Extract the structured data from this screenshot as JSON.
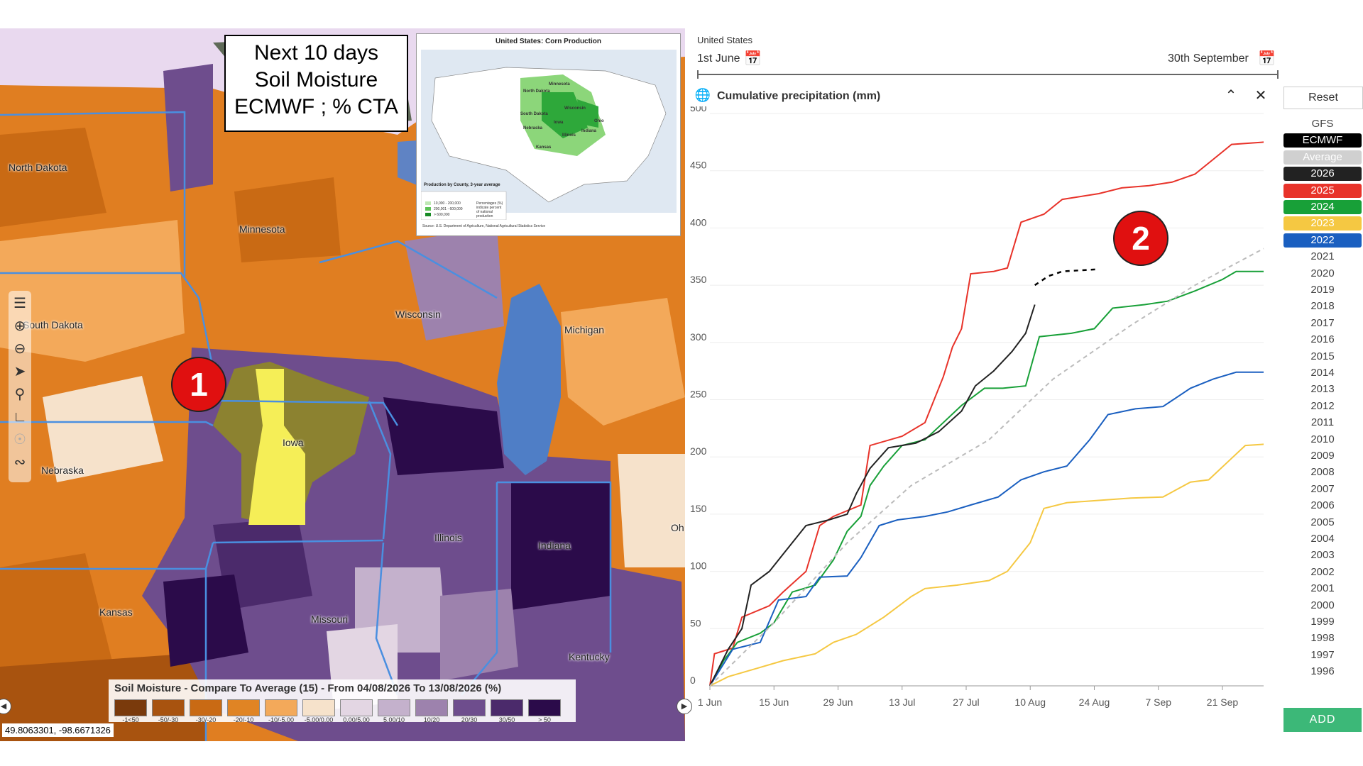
{
  "map": {
    "overlay": {
      "line1": "Next 10 days",
      "line2": "Soil Moisture",
      "line3": "ECMWF ; % CTA"
    },
    "inset": {
      "title": "United States: Corn Production",
      "states": [
        "North Dakota",
        "Minnesota",
        "South Dakota",
        "Wisconsin",
        "Nebraska",
        "Iowa",
        "Illinois",
        "Kansas",
        "Indiana",
        "Ohio"
      ],
      "legend_title": "Production by County, 3-year average",
      "legend_items": [
        "10,000 - 200,000",
        "200,001 - 600,000",
        "> 600,000"
      ],
      "legend_note": "Percentages (%) indicate percent of national production",
      "source": "Source: U.S. Department of Agriculture, National Agricultural Statistics Service"
    },
    "state_labels": [
      {
        "name": "North Dakota"
      },
      {
        "name": "Minnesota"
      },
      {
        "name": "South Dakota"
      },
      {
        "name": "Wisconsin"
      },
      {
        "name": "Michigan"
      },
      {
        "name": "Iowa"
      },
      {
        "name": "Nebraska"
      },
      {
        "name": "Illinois"
      },
      {
        "name": "Indiana"
      },
      {
        "name": "Kansas"
      },
      {
        "name": "Missouri"
      },
      {
        "name": "Kentucky"
      },
      {
        "name": "Oh"
      }
    ],
    "badge_1": "1",
    "legend": {
      "title": "Soil Moisture - Compare To Average (15) - From 04/08/2026 To 13/08/2026 (%)",
      "items": [
        {
          "label": "-1<50",
          "color": "#7a3a0c"
        },
        {
          "label": "-50/-30",
          "color": "#a8530f"
        },
        {
          "label": "-30/-20",
          "color": "#c96a14"
        },
        {
          "label": "-20/-10",
          "color": "#e08424"
        },
        {
          "label": "-10/-5.00",
          "color": "#f3a95a"
        },
        {
          "label": "-5.00/0.00",
          "color": "#f6e2cb"
        },
        {
          "label": "0.00/5.00",
          "color": "#e3d6e3"
        },
        {
          "label": "5.00/10",
          "color": "#c4b1cc"
        },
        {
          "label": "10/20",
          "color": "#9d82ad"
        },
        {
          "label": "20/30",
          "color": "#6e4d8d"
        },
        {
          "label": "30/50",
          "color": "#4b2a6b"
        },
        {
          "label": "> 50",
          "color": "#2b0b4a"
        }
      ]
    },
    "coords": "49.8063301, -98.6671326"
  },
  "chart_panel": {
    "region": "United States",
    "start_date": "1st June",
    "end_date": "30th September",
    "chart_title": "Cumulative precipitation (mm)",
    "reset_label": "Reset",
    "add_label": "ADD",
    "badge_2": "2",
    "models": [
      {
        "label": "GFS",
        "bg": "#ffffff",
        "fg": "#444444"
      },
      {
        "label": "ECMWF",
        "bg": "#000000",
        "fg": "#ffffff"
      },
      {
        "label": "Average",
        "bg": "#d0d0d0",
        "fg": "#ffffff"
      }
    ],
    "years_active": [
      {
        "label": "2026",
        "bg": "#222222",
        "fg": "#ffffff"
      },
      {
        "label": "2025",
        "bg": "#e8332a",
        "fg": "#ffffff"
      },
      {
        "label": "2024",
        "bg": "#18a038",
        "fg": "#ffffff"
      },
      {
        "label": "2023",
        "bg": "#f5c842",
        "fg": "#ffffff"
      },
      {
        "label": "2022",
        "bg": "#1a5fc0",
        "fg": "#ffffff"
      }
    ],
    "years_inactive": [
      "2021",
      "2020",
      "2019",
      "2018",
      "2017",
      "2016",
      "2015",
      "2014",
      "2013",
      "2012",
      "2011",
      "2010",
      "2009",
      "2008",
      "2007",
      "2006",
      "2005",
      "2004",
      "2003",
      "2002",
      "2001",
      "2000",
      "1999",
      "1998",
      "1997",
      "1996"
    ]
  },
  "chart_data": {
    "type": "line",
    "title": "Cumulative precipitation (mm)",
    "ylim": [
      0,
      500
    ],
    "yticks": [
      0,
      50,
      100,
      150,
      200,
      250,
      300,
      350,
      400,
      450,
      500
    ],
    "xlim": [
      "2026-06-01",
      "2026-09-30"
    ],
    "xticks": [
      {
        "date": "2026-06-01",
        "label": "1 Jun"
      },
      {
        "date": "2026-06-15",
        "label": "15 Jun"
      },
      {
        "date": "2026-06-29",
        "label": "29 Jun"
      },
      {
        "date": "2026-07-13",
        "label": "13 Jul"
      },
      {
        "date": "2026-07-27",
        "label": "27 Jul"
      },
      {
        "date": "2026-08-10",
        "label": "10 Aug"
      },
      {
        "date": "2026-08-24",
        "label": "24 Aug"
      },
      {
        "date": "2026-09-07",
        "label": "7 Sep"
      },
      {
        "date": "2026-09-21",
        "label": "21 Sep"
      }
    ],
    "series": [
      {
        "name": "2025",
        "color": "#e8332a",
        "dash": "",
        "points": [
          [
            "2026-06-01",
            0
          ],
          [
            "2026-06-02",
            28
          ],
          [
            "2026-06-06",
            33
          ],
          [
            "2026-06-08",
            60
          ],
          [
            "2026-06-14",
            70
          ],
          [
            "2026-06-17",
            82
          ],
          [
            "2026-06-22",
            100
          ],
          [
            "2026-06-25",
            140
          ],
          [
            "2026-06-28",
            148
          ],
          [
            "2026-07-04",
            158
          ],
          [
            "2026-07-06",
            210
          ],
          [
            "2026-07-13",
            218
          ],
          [
            "2026-07-18",
            230
          ],
          [
            "2026-07-22",
            270
          ],
          [
            "2026-07-24",
            296
          ],
          [
            "2026-07-26",
            312
          ],
          [
            "2026-07-28",
            360
          ],
          [
            "2026-08-02",
            362
          ],
          [
            "2026-08-05",
            365
          ],
          [
            "2026-08-08",
            405
          ],
          [
            "2026-08-13",
            412
          ],
          [
            "2026-08-17",
            425
          ],
          [
            "2026-08-25",
            430
          ],
          [
            "2026-08-30",
            435
          ],
          [
            "2026-09-05",
            437
          ],
          [
            "2026-09-10",
            440
          ],
          [
            "2026-09-15",
            447
          ],
          [
            "2026-09-19",
            460
          ],
          [
            "2026-09-23",
            473
          ],
          [
            "2026-09-30",
            475
          ]
        ]
      },
      {
        "name": "2024",
        "color": "#18a038",
        "dash": "",
        "points": [
          [
            "2026-06-01",
            0
          ],
          [
            "2026-06-04",
            22
          ],
          [
            "2026-06-07",
            38
          ],
          [
            "2026-06-12",
            46
          ],
          [
            "2026-06-15",
            55
          ],
          [
            "2026-06-19",
            82
          ],
          [
            "2026-06-24",
            88
          ],
          [
            "2026-06-28",
            110
          ],
          [
            "2026-07-01",
            135
          ],
          [
            "2026-07-04",
            148
          ],
          [
            "2026-07-06",
            175
          ],
          [
            "2026-07-09",
            192
          ],
          [
            "2026-07-13",
            210
          ],
          [
            "2026-07-18",
            215
          ],
          [
            "2026-07-22",
            230
          ],
          [
            "2026-07-26",
            245
          ],
          [
            "2026-07-31",
            260
          ],
          [
            "2026-08-04",
            260
          ],
          [
            "2026-08-09",
            262
          ],
          [
            "2026-08-12",
            305
          ],
          [
            "2026-08-19",
            308
          ],
          [
            "2026-08-24",
            312
          ],
          [
            "2026-08-28",
            330
          ],
          [
            "2026-09-04",
            333
          ],
          [
            "2026-09-09",
            336
          ],
          [
            "2026-09-15",
            345
          ],
          [
            "2026-09-21",
            355
          ],
          [
            "2026-09-24",
            362
          ],
          [
            "2026-09-30",
            362
          ]
        ]
      },
      {
        "name": "2023",
        "color": "#f5c842",
        "dash": "",
        "points": [
          [
            "2026-06-01",
            0
          ],
          [
            "2026-06-05",
            8
          ],
          [
            "2026-06-11",
            15
          ],
          [
            "2026-06-17",
            22
          ],
          [
            "2026-06-24",
            28
          ],
          [
            "2026-06-28",
            38
          ],
          [
            "2026-07-03",
            45
          ],
          [
            "2026-07-09",
            60
          ],
          [
            "2026-07-15",
            78
          ],
          [
            "2026-07-18",
            85
          ],
          [
            "2026-07-25",
            88
          ],
          [
            "2026-08-01",
            92
          ],
          [
            "2026-08-05",
            100
          ],
          [
            "2026-08-10",
            125
          ],
          [
            "2026-08-13",
            155
          ],
          [
            "2026-08-18",
            160
          ],
          [
            "2026-08-25",
            162
          ],
          [
            "2026-09-01",
            164
          ],
          [
            "2026-09-08",
            165
          ],
          [
            "2026-09-14",
            178
          ],
          [
            "2026-09-18",
            180
          ],
          [
            "2026-09-22",
            195
          ],
          [
            "2026-09-26",
            210
          ],
          [
            "2026-09-30",
            211
          ]
        ]
      },
      {
        "name": "2022",
        "color": "#1a5fc0",
        "dash": "",
        "points": [
          [
            "2026-06-01",
            0
          ],
          [
            "2026-06-06",
            32
          ],
          [
            "2026-06-12",
            38
          ],
          [
            "2026-06-16",
            75
          ],
          [
            "2026-06-22",
            78
          ],
          [
            "2026-06-25",
            95
          ],
          [
            "2026-07-01",
            96
          ],
          [
            "2026-07-04",
            112
          ],
          [
            "2026-07-08",
            140
          ],
          [
            "2026-07-12",
            145
          ],
          [
            "2026-07-18",
            148
          ],
          [
            "2026-07-23",
            152
          ],
          [
            "2026-07-28",
            158
          ],
          [
            "2026-08-03",
            165
          ],
          [
            "2026-08-08",
            180
          ],
          [
            "2026-08-13",
            187
          ],
          [
            "2026-08-18",
            192
          ],
          [
            "2026-08-23",
            215
          ],
          [
            "2026-08-27",
            237
          ],
          [
            "2026-09-02",
            242
          ],
          [
            "2026-09-08",
            244
          ],
          [
            "2026-09-14",
            260
          ],
          [
            "2026-09-19",
            268
          ],
          [
            "2026-09-24",
            274
          ],
          [
            "2026-09-30",
            274
          ]
        ]
      },
      {
        "name": "2026",
        "color": "#222222",
        "dash": "",
        "points": [
          [
            "2026-06-01",
            0
          ],
          [
            "2026-06-05",
            32
          ],
          [
            "2026-06-08",
            50
          ],
          [
            "2026-06-10",
            88
          ],
          [
            "2026-06-14",
            100
          ],
          [
            "2026-06-17",
            115
          ],
          [
            "2026-06-22",
            140
          ],
          [
            "2026-06-27",
            145
          ],
          [
            "2026-07-01",
            150
          ],
          [
            "2026-07-03",
            168
          ],
          [
            "2026-07-06",
            190
          ],
          [
            "2026-07-10",
            208
          ],
          [
            "2026-07-16",
            212
          ],
          [
            "2026-07-21",
            222
          ],
          [
            "2026-07-26",
            240
          ],
          [
            "2026-07-29",
            262
          ],
          [
            "2026-08-02",
            275
          ],
          [
            "2026-08-06",
            292
          ],
          [
            "2026-08-09",
            308
          ],
          [
            "2026-08-11",
            333
          ]
        ]
      },
      {
        "name": "ECMWF",
        "color": "#000000",
        "dash": "6,6",
        "points": [
          [
            "2026-08-11",
            350
          ],
          [
            "2026-08-14",
            358
          ],
          [
            "2026-08-17",
            362
          ],
          [
            "2026-08-21",
            363
          ],
          [
            "2026-08-25",
            364
          ]
        ]
      },
      {
        "name": "Average",
        "color": "#bbbbbb",
        "dash": "6,5",
        "points": [
          [
            "2026-06-01",
            0
          ],
          [
            "2026-06-15",
            55
          ],
          [
            "2026-07-01",
            125
          ],
          [
            "2026-07-15",
            175
          ],
          [
            "2026-08-01",
            215
          ],
          [
            "2026-08-15",
            268
          ],
          [
            "2026-09-01",
            315
          ],
          [
            "2026-09-15",
            350
          ],
          [
            "2026-09-30",
            382
          ]
        ]
      }
    ]
  }
}
